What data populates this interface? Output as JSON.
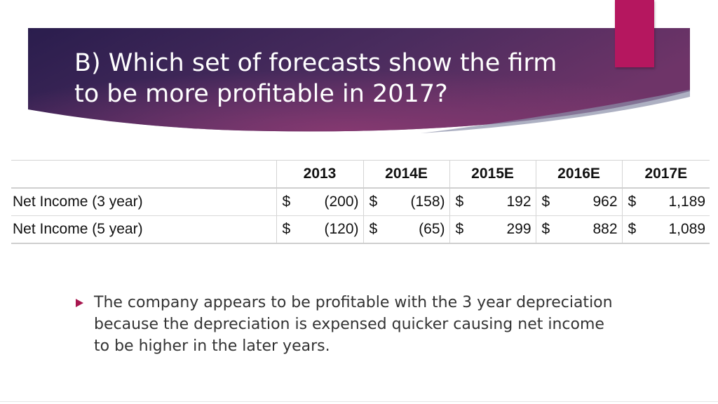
{
  "slide": {
    "title_line1": "B) Which set of forecasts show the firm",
    "title_line2": "to be more profitable in 2017?",
    "colors": {
      "band_dark": "#2a1d4d",
      "band_mid": "#4a2c5e",
      "band_light": "#7a3a6e",
      "accent_tab": "#b5175f",
      "bullet": "#a8174f"
    }
  },
  "table": {
    "headers": [
      "2013",
      "2014E",
      "2015E",
      "2016E",
      "2017E"
    ],
    "currency_symbol": "$",
    "rows": [
      {
        "label": "Net Income (3 year)",
        "values": [
          "(200)",
          "(158)",
          "192",
          "962",
          "1,189"
        ]
      },
      {
        "label": "Net Income (5 year)",
        "values": [
          "(120)",
          "(65)",
          "299",
          "882",
          "1,089"
        ]
      }
    ]
  },
  "bullets": [
    {
      "text": "The company appears to be profitable with the 3 year depreciation because the depreciation is expensed quicker causing net income to be higher in the later years.",
      "icon": "triangle-bullet-icon"
    }
  ]
}
